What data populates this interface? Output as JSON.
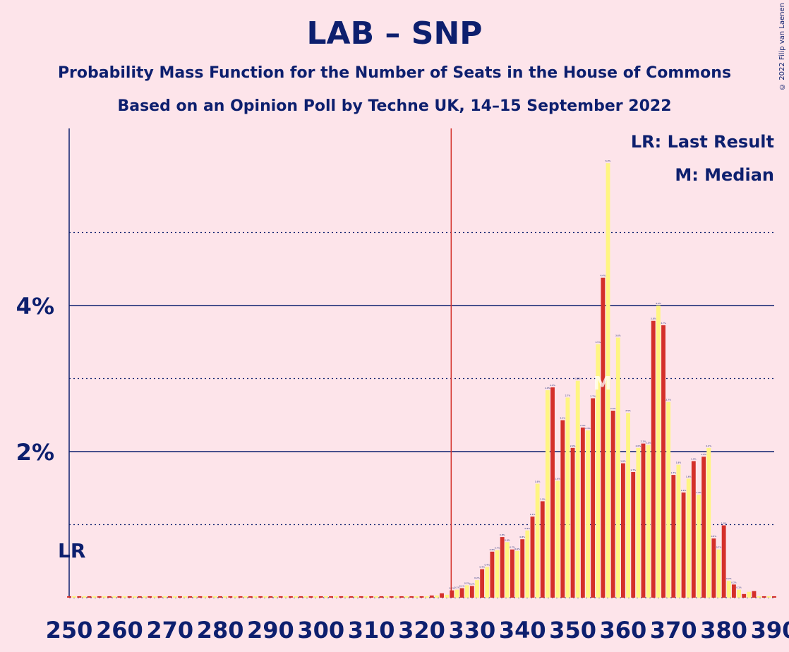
{
  "title": "LAB – SNP",
  "subtitle_1": "Probability Mass Function for the Number of Seats in the House of Commons",
  "subtitle_2": "Based on an Opinion Poll by Techne UK, 14–15 September 2022",
  "copyright": "© 2022 Filip van Laenen",
  "colors": {
    "background": "#fde4ea",
    "text": "#0d1f6e",
    "bar_red": "#d4302a",
    "bar_yellow": "#fff582",
    "last_result_line": "#d4302a"
  },
  "chart_data": {
    "type": "bar",
    "x_ticks": [
      250,
      260,
      270,
      280,
      290,
      300,
      310,
      320,
      330,
      340,
      350,
      360,
      370,
      380,
      390
    ],
    "y_ticks": [
      "2%",
      "4%"
    ],
    "ylim": [
      0,
      6.5
    ],
    "legend": [
      "LR: Last Result",
      "M: Median"
    ],
    "legend_position": "top-right",
    "last_result_label": "LR",
    "last_result_value": 250,
    "last_result_line_seats": 326,
    "median_label": "M",
    "median_seats": 357,
    "categories": [
      250,
      251,
      252,
      253,
      254,
      255,
      256,
      257,
      258,
      259,
      260,
      261,
      262,
      263,
      264,
      265,
      266,
      267,
      268,
      269,
      270,
      271,
      272,
      273,
      274,
      275,
      276,
      277,
      278,
      279,
      280,
      281,
      282,
      283,
      284,
      285,
      286,
      287,
      288,
      289,
      290,
      291,
      292,
      293,
      294,
      295,
      296,
      297,
      298,
      299,
      300,
      301,
      302,
      303,
      304,
      305,
      306,
      307,
      308,
      309,
      310,
      311,
      312,
      313,
      314,
      315,
      316,
      317,
      318,
      319,
      320,
      321,
      322,
      323,
      324,
      325,
      326,
      327,
      328,
      329,
      330,
      331,
      332,
      333,
      334,
      335,
      336,
      337,
      338,
      339,
      340,
      341,
      342,
      343,
      344,
      345,
      346,
      347,
      348,
      349,
      350,
      351,
      352,
      353,
      354,
      355,
      356,
      357,
      358,
      359,
      360,
      361,
      362,
      363,
      364,
      365,
      366,
      367,
      368,
      369,
      370,
      371,
      372,
      373,
      374,
      375,
      376,
      377,
      378,
      379,
      380,
      381,
      382,
      383,
      384,
      385,
      386,
      387,
      388,
      389,
      390
    ],
    "values": [
      0.02,
      0.02,
      0.02,
      0.02,
      0.02,
      0.02,
      0.02,
      0.02,
      0.02,
      0.02,
      0.02,
      0.02,
      0.02,
      0.02,
      0.02,
      0.02,
      0.02,
      0.02,
      0.02,
      0.02,
      0.02,
      0.02,
      0.02,
      0.02,
      0.02,
      0.02,
      0.02,
      0.02,
      0.02,
      0.02,
      0.02,
      0.02,
      0.02,
      0.02,
      0.02,
      0.02,
      0.02,
      0.02,
      0.02,
      0.02,
      0.02,
      0.02,
      0.02,
      0.02,
      0.02,
      0.02,
      0.02,
      0.02,
      0.02,
      0.02,
      0.02,
      0.02,
      0.02,
      0.02,
      0.02,
      0.02,
      0.02,
      0.02,
      0.02,
      0.02,
      0.02,
      0.02,
      0.02,
      0.02,
      0.02,
      0.02,
      0.02,
      0.02,
      0.02,
      0.02,
      0.02,
      0.02,
      0.03,
      0.03,
      0.06,
      0.04,
      0.1,
      0.11,
      0.13,
      0.17,
      0.16,
      0.24,
      0.39,
      0.42,
      0.63,
      0.65,
      0.83,
      0.76,
      0.66,
      0.64,
      0.8,
      0.92,
      1.11,
      1.56,
      1.32,
      2.84,
      2.88,
      1.6,
      2.43,
      2.74,
      2.05,
      2.97,
      2.33,
      2.29,
      2.73,
      3.47,
      4.38,
      5.95,
      2.56,
      3.56,
      1.84,
      2.53,
      1.72,
      2.05,
      2.11,
      2.09,
      3.79,
      4.0,
      3.73,
      2.68,
      1.68,
      1.82,
      1.44,
      1.63,
      1.87,
      1.41,
      1.93,
      2.05,
      0.81,
      0.66,
      0.99,
      0.23,
      0.18,
      0.11,
      0.05,
      0.08,
      0.09,
      0.02,
      0.02,
      0.02,
      0.02
    ]
  }
}
